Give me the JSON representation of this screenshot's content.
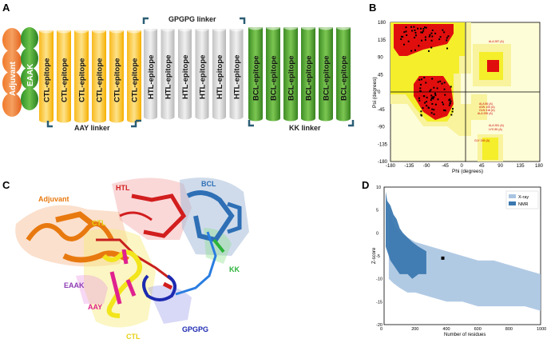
{
  "panels": {
    "a": "A",
    "b": "B",
    "c": "C",
    "d": "D"
  },
  "panel_a": {
    "adjuvant": "Adjuvant",
    "eaak": "EAAK",
    "ctl": [
      "CTL-epitope",
      "CTL-epitope",
      "CTL-epitope",
      "CTL-epitope",
      "CTL-epitope",
      "CTL-epitope"
    ],
    "htl": [
      "HTL-epitope",
      "HTL-epitope",
      "HTL-epitope",
      "HTL-epitope",
      "HTL-epitope",
      "HTL-epitope"
    ],
    "bcl": [
      "BCL-epitope",
      "BCL-epitope",
      "BCL-epitope",
      "BCL-epitope",
      "BCL-epitope",
      "BCL-epitope"
    ],
    "aay_linker": "AAY linker",
    "gpgpg_linker": "GPGPG linker",
    "kk_linker": "KK linker",
    "colors": {
      "adjuvant": "#ec6c2c",
      "eaak": "#3faa35",
      "ctl": "#fcc83c",
      "htl": "#d6d6d6",
      "bcl": "#5aa732",
      "linker": "#2a5d74"
    }
  },
  "panel_b": {
    "xlabel": "Phi (degrees)",
    "ylabel": "Psi (degrees)",
    "x_ticks": [
      "-180",
      "-135",
      "-90",
      "-45",
      "0",
      "45",
      "90",
      "135",
      "180"
    ],
    "y_ticks": [
      "180",
      "135",
      "90",
      "45",
      "0",
      "-45",
      "-90",
      "-135",
      "-180"
    ],
    "residue_labels": [
      "ALA 287 (A)",
      "GLY 95 (A)",
      "ALA 86 (A)",
      "ASN 105 (A)",
      "GLN 318 (A)",
      "ALA 295 (A)",
      "ALA 281 (A)",
      "LYS 89 (A)",
      "GLY 245 (A)"
    ]
  },
  "panel_c": {
    "adjuvant": "Adjuvant",
    "htl": "HTL",
    "bcl": "BCL",
    "ctl_top": "CTL",
    "ctl_bottom": "CTL",
    "eaak": "EAAK",
    "aay": "AAY",
    "kk": "KK",
    "gpgpg": "GPGPG"
  },
  "chart_data": {
    "type": "scatter",
    "title": "",
    "xlabel": "Number of residues",
    "ylabel": "Z-score",
    "xlim": [
      0,
      1000
    ],
    "ylim": [
      -20,
      10
    ],
    "x_ticks": [
      "0",
      "200",
      "400",
      "600",
      "800",
      "1000"
    ],
    "y_ticks": [
      "10",
      "5",
      "0",
      "-5",
      "-10",
      "-15",
      "-20"
    ],
    "legend": [
      "X-ray",
      "NMR"
    ],
    "series": [
      {
        "name": "X-ray",
        "color": "#a9c4e1",
        "x": [
          30,
          60,
          100,
          150,
          200,
          300,
          400,
          500,
          600,
          700,
          800,
          900,
          1000
        ],
        "y_low": [
          -10,
          -11,
          -12,
          -13,
          -13,
          -14,
          -15,
          -15,
          -16,
          -16,
          -16,
          -16,
          -17
        ],
        "y_high": [
          5,
          2,
          0,
          -1,
          -2,
          -3,
          -4,
          -5,
          -6,
          -6,
          -7,
          -8,
          -9
        ]
      },
      {
        "name": "NMR",
        "color": "#3b78b0",
        "x": [
          10,
          20,
          40,
          60,
          80,
          100,
          120,
          150,
          180,
          220,
          270
        ],
        "y_low": [
          -3,
          -4,
          -6,
          -7,
          -8,
          -9,
          -9,
          -9,
          -10,
          -9,
          -9
        ],
        "y_high": [
          9,
          7,
          6,
          4,
          3,
          1,
          0,
          -1,
          -2,
          -3,
          -4
        ]
      }
    ],
    "marker": {
      "label": "",
      "x": 375,
      "y": -5.5
    }
  }
}
